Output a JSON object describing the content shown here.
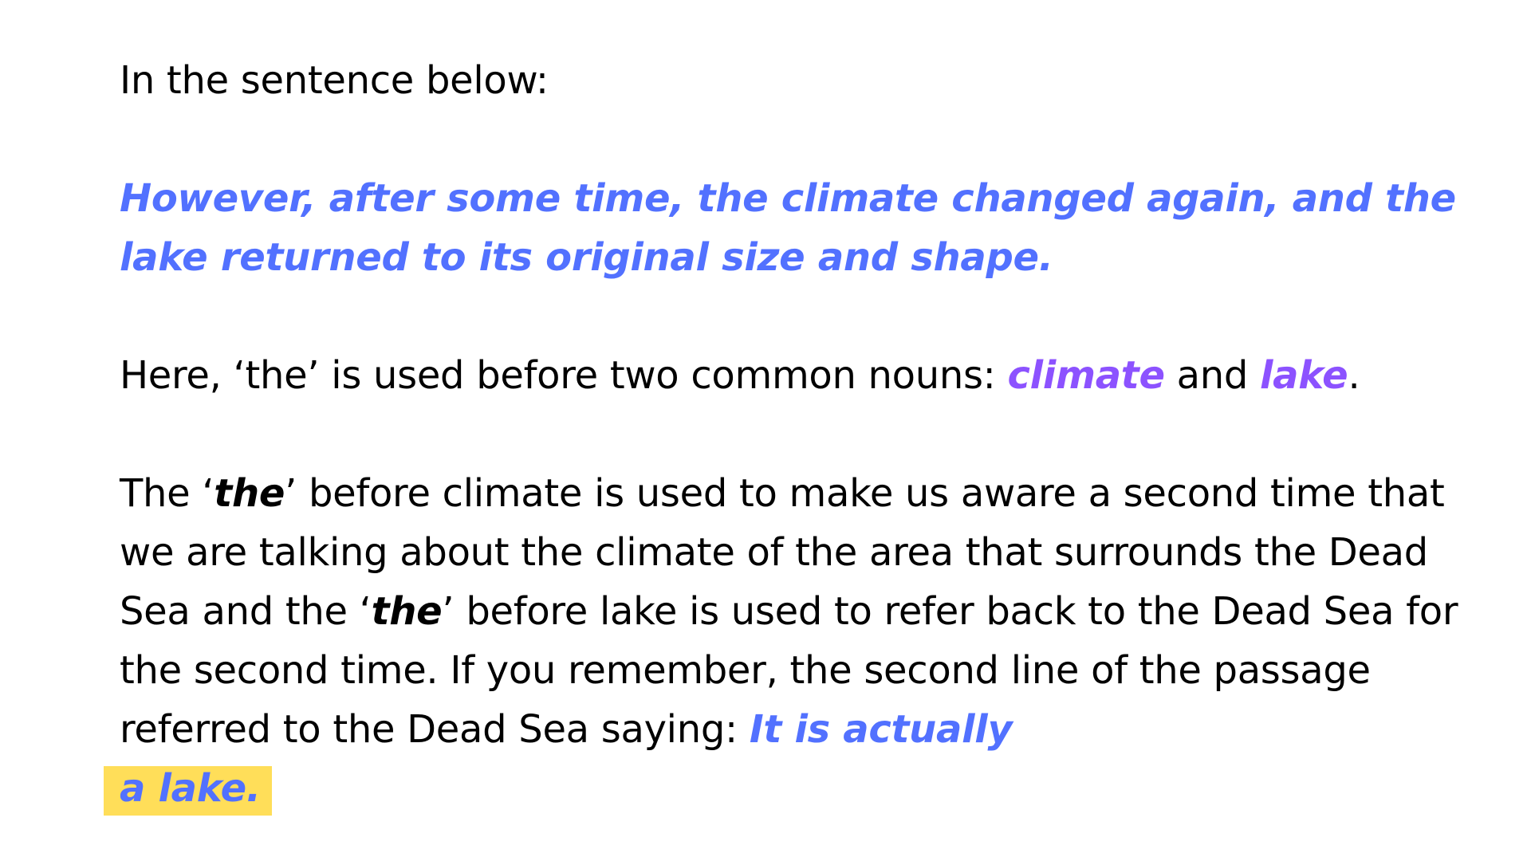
{
  "intro": "In the sentence below:",
  "example_sentence": "However, after some time, the climate changed again, and the lake returned to its original size and shape.",
  "nouns_line": {
    "prefix": "Here, ‘the’ is used before two common nouns: ",
    "noun1": "climate",
    "and": " and ",
    "noun2": "lake",
    "end": "."
  },
  "explanation": {
    "part1": "The ‘",
    "the1": "the",
    "part2": "’ before climate is used to make us aware a second time that we are talking about the climate of the area that surrounds the Dead Sea and the ‘",
    "the2": "the",
    "part3": "’ before lake is used to refer back to the Dead Sea for the second time. If you remember, the second line of the passage referred to the Dead Sea saying: ",
    "quote_a": "It is actually",
    "quote_b": "a lake."
  },
  "colors": {
    "blue": "#5271ff",
    "purple": "#8c52ff",
    "highlight": "#ffde59"
  }
}
